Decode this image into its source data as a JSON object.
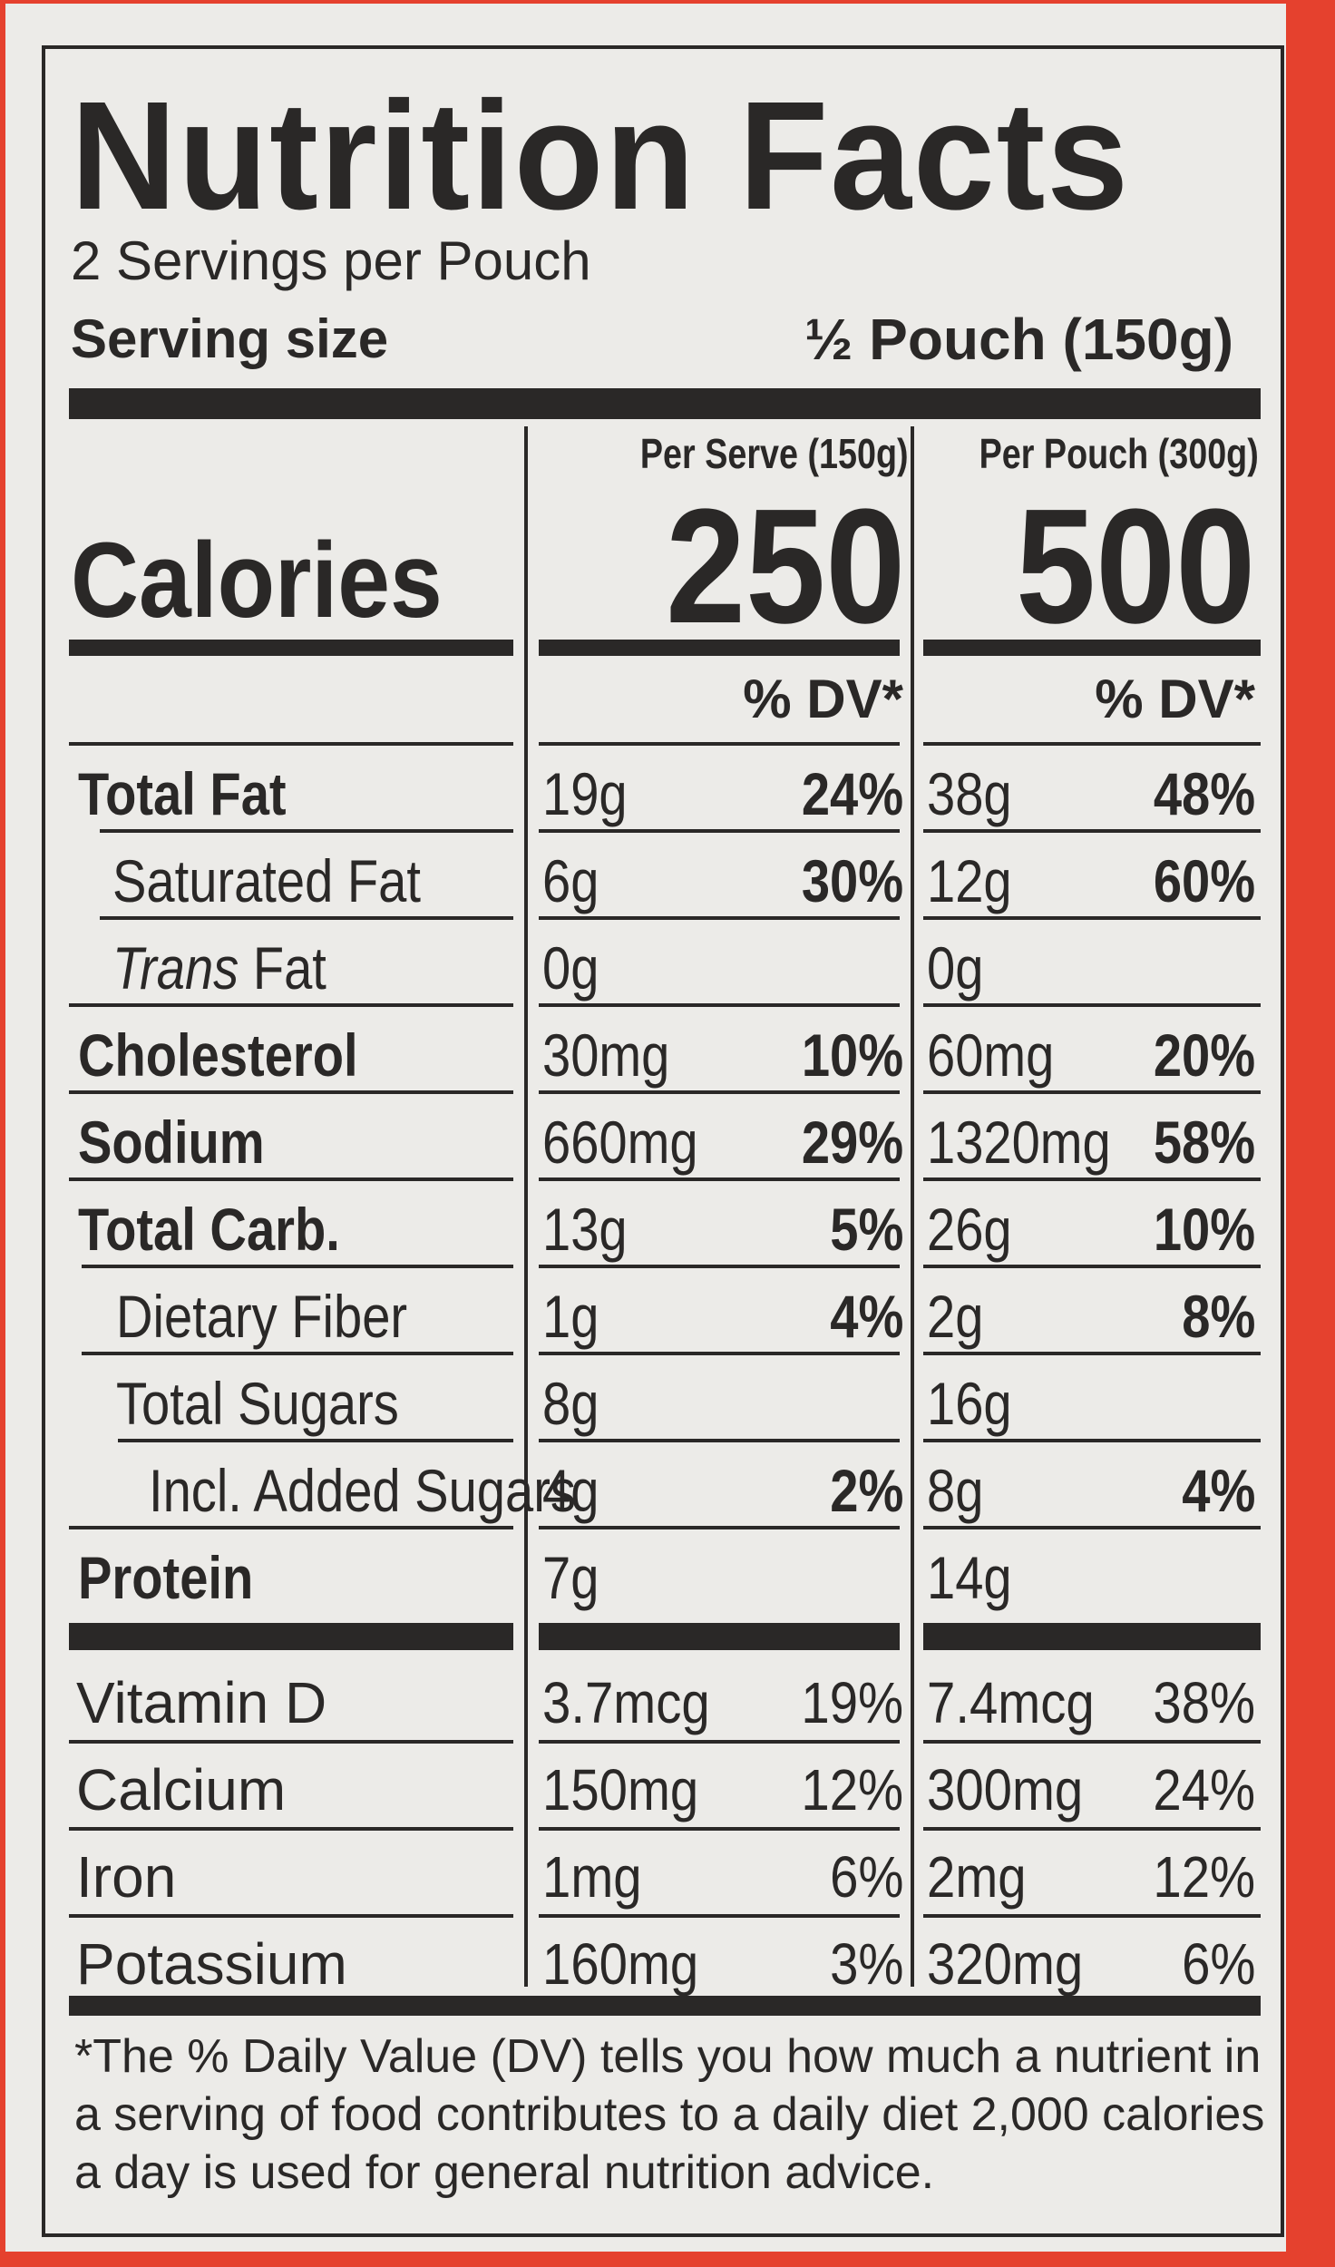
{
  "label": {
    "title": "Nutrition Facts",
    "servings_per_container": "2 Servings per Pouch",
    "serving_size_label": "Serving size",
    "serving_size_value": "½ Pouch (150g)",
    "column_headers": [
      "Per Serve (150g)",
      "Per Pouch (300g)"
    ],
    "calories_label": "Calories",
    "calories": [
      "250",
      "500"
    ],
    "dv_header": "% DV*",
    "nutrients": [
      {
        "label": "Total Fat",
        "serve_amount": "19g",
        "serve_dv": "24%",
        "pouch_amount": "38g",
        "pouch_dv": "48%"
      },
      {
        "label": "Saturated Fat",
        "serve_amount": "6g",
        "serve_dv": "30%",
        "pouch_amount": "12g",
        "pouch_dv": "60%"
      },
      {
        "label_italic": "Trans",
        "label": " Fat",
        "serve_amount": "0g",
        "serve_dv": "",
        "pouch_amount": "0g",
        "pouch_dv": ""
      },
      {
        "label": "Cholesterol",
        "serve_amount": "30mg",
        "serve_dv": "10%",
        "pouch_amount": "60mg",
        "pouch_dv": "20%"
      },
      {
        "label": "Sodium",
        "serve_amount": "660mg",
        "serve_dv": "29%",
        "pouch_amount": "1320mg",
        "pouch_dv": "58%"
      },
      {
        "label": "Total Carb.",
        "serve_amount": "13g",
        "serve_dv": "5%",
        "pouch_amount": "26g",
        "pouch_dv": "10%"
      },
      {
        "label": "Dietary Fiber",
        "serve_amount": "1g",
        "serve_dv": "4%",
        "pouch_amount": "2g",
        "pouch_dv": "8%"
      },
      {
        "label": "Total Sugars",
        "serve_amount": "8g",
        "serve_dv": "",
        "pouch_amount": "16g",
        "pouch_dv": ""
      },
      {
        "label": "Incl. Added Sugars",
        "serve_amount": "4g",
        "serve_dv": "2%",
        "pouch_amount": "8g",
        "pouch_dv": "4%"
      },
      {
        "label": "Protein",
        "serve_amount": "7g",
        "serve_dv": "",
        "pouch_amount": "14g",
        "pouch_dv": ""
      }
    ],
    "vitamins": [
      {
        "label": "Vitamin D",
        "serve_amount": "3.7mcg",
        "serve_dv": "19%",
        "pouch_amount": "7.4mcg",
        "pouch_dv": "38%"
      },
      {
        "label": "Calcium",
        "serve_amount": "150mg",
        "serve_dv": "12%",
        "pouch_amount": "300mg",
        "pouch_dv": "24%"
      },
      {
        "label": "Iron",
        "serve_amount": "1mg",
        "serve_dv": "6%",
        "pouch_amount": "2mg",
        "pouch_dv": "12%"
      },
      {
        "label": "Potassium",
        "serve_amount": "160mg",
        "serve_dv": "3%",
        "pouch_amount": "320mg",
        "pouch_dv": "6%"
      }
    ],
    "footnote": "*The % Daily Value (DV) tells you how much a nutrient in a serving of food contributes to a daily diet 2,000 calories a day is used for general nutrition advice."
  }
}
